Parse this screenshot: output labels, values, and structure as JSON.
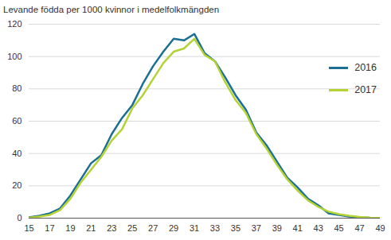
{
  "chart_data": {
    "type": "line",
    "title": "Levande födda per 1000 kvinnor i medelfolkmängden",
    "x": [
      15,
      16,
      17,
      18,
      19,
      20,
      21,
      22,
      23,
      24,
      25,
      26,
      27,
      28,
      29,
      30,
      31,
      32,
      33,
      34,
      35,
      36,
      37,
      38,
      39,
      40,
      41,
      42,
      43,
      44,
      45,
      46,
      47,
      48,
      49
    ],
    "series": [
      {
        "name": "2016",
        "color": "#1b6f95",
        "values": [
          0.5,
          1.5,
          3,
          6,
          14,
          24,
          34,
          39,
          52,
          62,
          70,
          83,
          94,
          103,
          111,
          110,
          114,
          102,
          97,
          87,
          76,
          67,
          53,
          45,
          35,
          25,
          19,
          12,
          8,
          3,
          2,
          1,
          0.5,
          0.2,
          0.1
        ]
      },
      {
        "name": "2017",
        "color": "#b3d335",
        "values": [
          0.3,
          1,
          2,
          5,
          12,
          22,
          30,
          38,
          48,
          55,
          68,
          76,
          86,
          96,
          103,
          105,
          111,
          101,
          97,
          84,
          73,
          65,
          52,
          43,
          33,
          24,
          17,
          11,
          7,
          4,
          2.5,
          1.5,
          0.7,
          0.3,
          0.1
        ]
      }
    ],
    "xlim": [
      15,
      49
    ],
    "xticks": [
      15,
      17,
      19,
      21,
      23,
      25,
      27,
      29,
      31,
      33,
      35,
      37,
      39,
      41,
      43,
      45,
      47,
      49
    ],
    "ylim": [
      0,
      120
    ],
    "yticks": [
      0,
      20,
      40,
      60,
      80,
      100,
      120
    ],
    "grid": true,
    "legend": "upper right"
  }
}
